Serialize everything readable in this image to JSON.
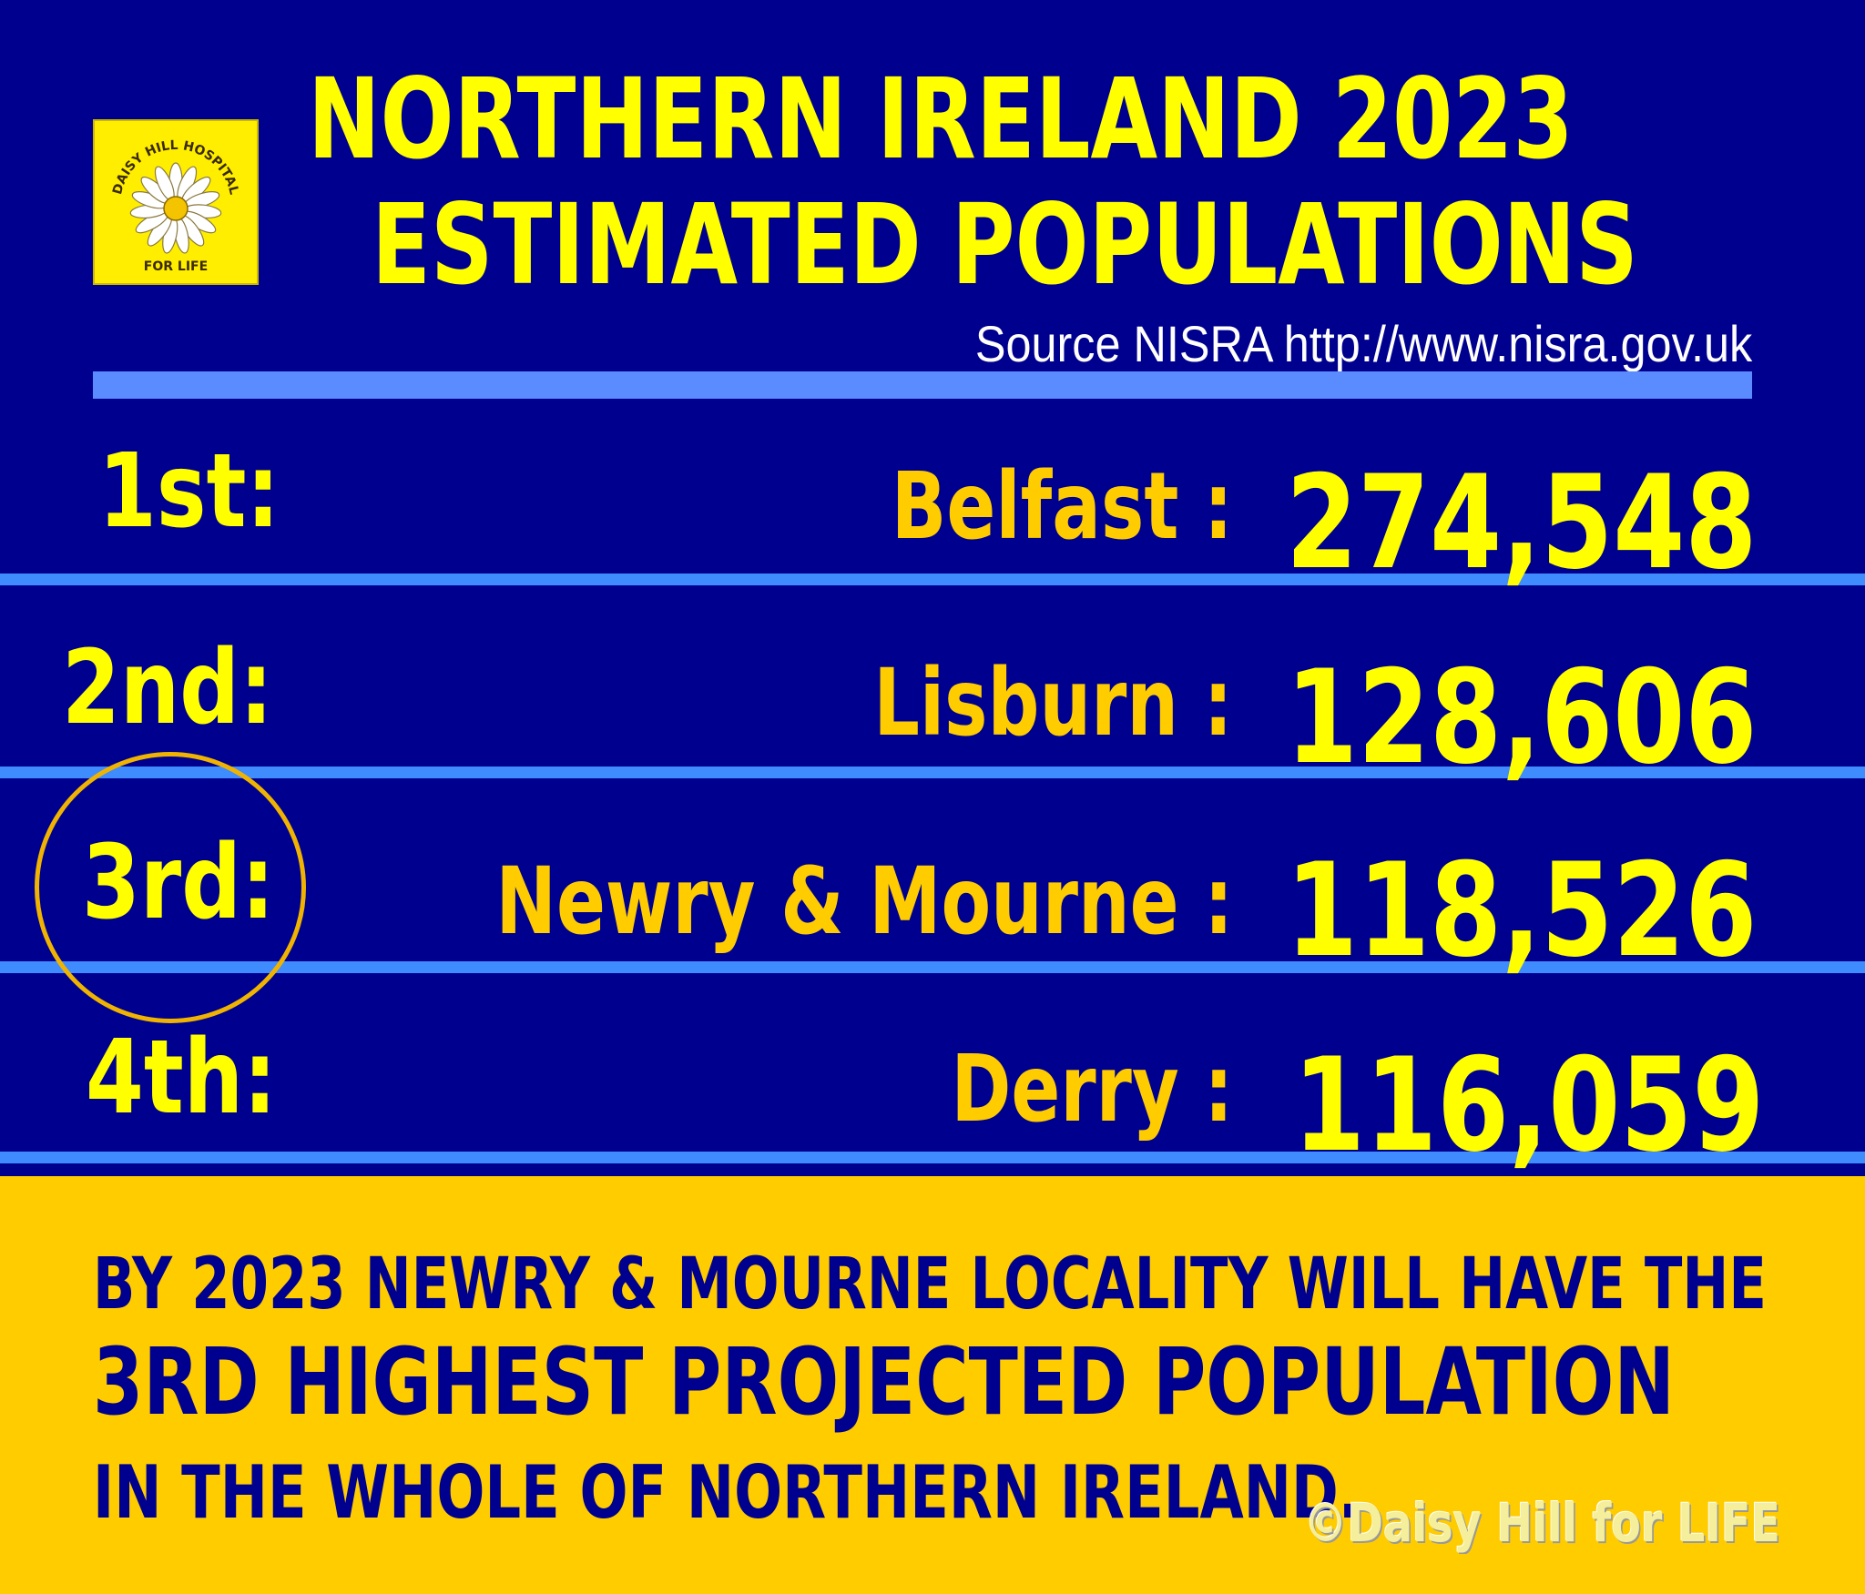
{
  "logo": {
    "top_text": "DAISY HILL HOSPITAL",
    "bottom_text": "FOR LIFE",
    "icon": "daisy-flower-icon"
  },
  "header": {
    "title_line1": "NORTHERN IRELAND 2023",
    "title_line2": "ESTIMATED POPULATIONS",
    "source": "Source NISRA  http://www.nisra.gov.uk"
  },
  "rankings": [
    {
      "rank": "1st:",
      "place": "Belfast :",
      "population": "274,548"
    },
    {
      "rank": "2nd:",
      "place": "Lisburn :",
      "population": "128,606"
    },
    {
      "rank": "3rd:",
      "place": "Newry & Mourne :",
      "population": "118,526"
    },
    {
      "rank": "4th:",
      "place": "Derry :",
      "population": "116,059"
    }
  ],
  "footer": {
    "line1": "BY 2023 NEWRY & MOURNE LOCALITY WILL HAVE THE",
    "line2": "3RD HIGHEST PROJECTED POPULATION",
    "line3": "IN THE WHOLE OF NORTHERN IRELAND.",
    "copyright": "©Daisy Hill for LIFE"
  },
  "colors": {
    "background": "#00008f",
    "title": "#ffff00",
    "place": "#ffcc00",
    "separator": "#3f8cff",
    "footer_bg": "#ffcc00",
    "footer_text": "#00008f",
    "highlight_circle": "#f0b400"
  }
}
